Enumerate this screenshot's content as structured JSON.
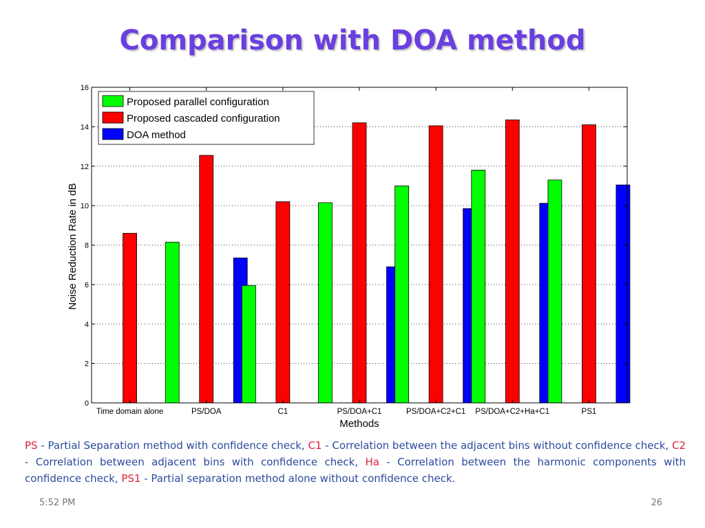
{
  "slide": {
    "title": "Comparison with DOA method",
    "footer_time": "5:52 PM",
    "page_number": "26"
  },
  "caption": {
    "ps_abbr": "PS",
    "ps_text": " - Partial Separation method with confidence check, ",
    "c1_abbr": "C1",
    "c1_text": " - Correlation between the adjacent bins without confidence check, ",
    "c2_abbr": "C2",
    "c2_text": " - Correlation between adjacent bins with confidence check, ",
    "ha_abbr": "Ha",
    "ha_text": " - Correlation between the harmonic components with confidence check, ",
    "ps1_abbr": "PS1",
    "ps1_text": " - Partial separation method alone without confidence check."
  },
  "chart_data": {
    "type": "bar",
    "xlabel": "Methods",
    "ylabel": "Noise Reduction Rate in dB",
    "ylim": [
      0,
      16
    ],
    "yticks": [
      0,
      2,
      4,
      6,
      8,
      10,
      12,
      14,
      16
    ],
    "grid": "dotted horizontal",
    "legend_position": "top-left",
    "categories": [
      "Time domain alone",
      "PS/DOA",
      "C1",
      "PS/DOA+C1",
      "PS/DOA+C2+C1",
      "PS/DOA+C2+Ha+C1",
      "PS1"
    ],
    "series": [
      {
        "name": "Proposed parallel configuration",
        "color": "#00ff00",
        "values": [
          null,
          8.15,
          5.95,
          10.15,
          11.0,
          11.8,
          11.3
        ]
      },
      {
        "name": "Proposed cascaded configuration",
        "color": "#ff0000",
        "values": [
          8.6,
          12.55,
          10.2,
          14.2,
          14.05,
          14.35,
          14.1
        ]
      },
      {
        "name": "DOA method",
        "color": "#0000ff",
        "values": [
          null,
          7.35,
          null,
          6.9,
          9.85,
          10.12,
          11.05
        ]
      }
    ]
  }
}
